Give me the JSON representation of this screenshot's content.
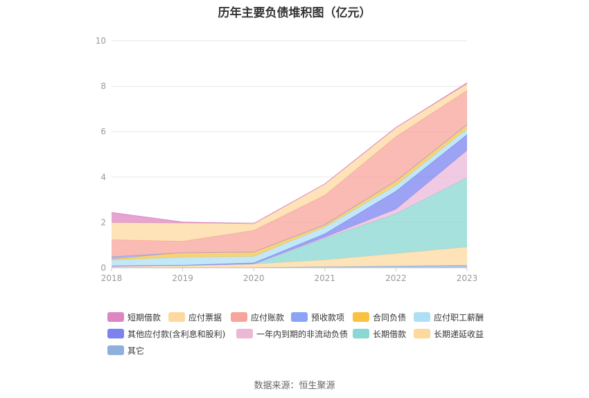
{
  "chart_data": {
    "type": "area",
    "stacked": true,
    "title": "历年主要负债堆积图（亿元）",
    "x": [
      "2018",
      "2019",
      "2020",
      "2021",
      "2022",
      "2023"
    ],
    "ylim": [
      0,
      10
    ],
    "yticks": [
      0,
      2,
      4,
      6,
      8,
      10
    ],
    "grid": true,
    "legend_position": "bottom",
    "series": [
      {
        "name": "其它",
        "color": "#8fb0dc",
        "values": [
          0.02,
          0.02,
          0.02,
          0.05,
          0.08,
          0.12
        ]
      },
      {
        "name": "长期递延收益",
        "color": "#fdd9a0",
        "values": [
          0.05,
          0.08,
          0.15,
          0.3,
          0.55,
          0.8
        ]
      },
      {
        "name": "长期借款",
        "color": "#8ad7d3",
        "values": [
          0.0,
          0.0,
          0.0,
          0.95,
          1.75,
          3.05
        ]
      },
      {
        "name": "一年内到期的非流动负债",
        "color": "#ebb8d8",
        "values": [
          0.0,
          0.0,
          0.0,
          0.05,
          0.2,
          1.2
        ]
      },
      {
        "name": "其他应付款(含利息和股利)",
        "color": "#7b83f0",
        "values": [
          0.02,
          0.02,
          0.05,
          0.15,
          0.8,
          0.7
        ]
      },
      {
        "name": "应付职工薪酬",
        "color": "#aee0f5",
        "values": [
          0.25,
          0.35,
          0.28,
          0.3,
          0.25,
          0.25
        ]
      },
      {
        "name": "合同负债",
        "color": "#f9c243",
        "values": [
          0.05,
          0.2,
          0.2,
          0.1,
          0.2,
          0.2
        ]
      },
      {
        "name": "预收款项",
        "color": "#8ba4f5",
        "values": [
          0.1,
          0.0,
          0.0,
          0.0,
          0.0,
          0.0
        ]
      },
      {
        "name": "应付账款",
        "color": "#f7a49b",
        "values": [
          0.75,
          0.5,
          0.95,
          1.3,
          1.95,
          1.5
        ]
      },
      {
        "name": "应付票据",
        "color": "#fdd9a0",
        "values": [
          0.75,
          0.8,
          0.3,
          0.5,
          0.4,
          0.28
        ]
      },
      {
        "name": "短期借款",
        "color": "#dc86c2",
        "values": [
          0.45,
          0.05,
          0.0,
          0.0,
          0.0,
          0.05
        ]
      }
    ],
    "legend_order": [
      "短期借款",
      "应付票据",
      "应付账款",
      "预收款项",
      "合同负债",
      "应付职工薪酬",
      "其他应付款(含利息和股利)",
      "一年内到期的非流动负债",
      "长期借款",
      "长期递延收益",
      "其它"
    ]
  },
  "footer": {
    "source": "数据来源：恒生聚源"
  }
}
